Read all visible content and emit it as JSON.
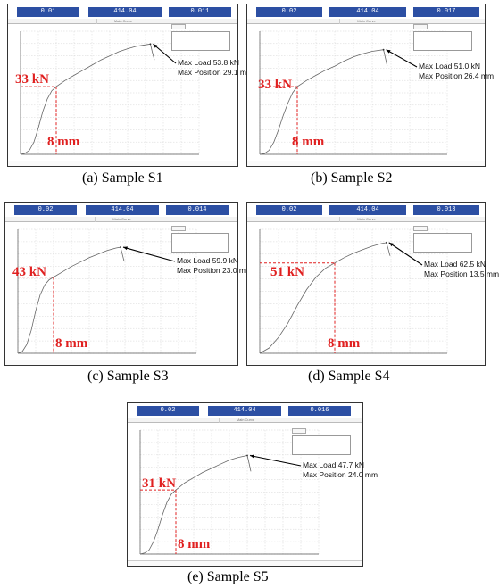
{
  "software": {
    "stack_title": "Main Curve",
    "readouts": [
      "0.01",
      "414.04",
      "0.011"
    ]
  },
  "captions": [
    "(a)  Sample S1",
    "(b) Sample S2",
    "(c)  Sample S3",
    "(d) Sample S4",
    "(e)  Sample S5"
  ],
  "chart_data": [
    {
      "type": "line",
      "sample": "S1",
      "readouts": [
        "0.01",
        "414.04",
        "0.011"
      ],
      "max_load_label": "Max Load 53.8 kN",
      "max_position_label": "Max Position 29.1 mm",
      "yield_load_label": "33 kN",
      "yield_position_label": "8 mm",
      "yield_load_kN": 33,
      "yield_position_mm": 8,
      "max_load_kN": 53.8,
      "max_position_mm": 29.1,
      "ylim": [
        0,
        60
      ],
      "xlim": [
        0,
        40
      ],
      "series": [
        {
          "x": [
            0,
            1,
            2,
            3,
            4,
            5,
            6,
            7,
            8,
            10,
            12,
            14,
            16,
            18,
            20,
            22,
            24,
            26,
            28,
            29.1,
            29.5,
            30.0
          ],
          "y": [
            0,
            0.5,
            2,
            6,
            13,
            21,
            27,
            31,
            33,
            36,
            38.5,
            41,
            43.5,
            46,
            48,
            50,
            51.5,
            52.7,
            53.4,
            53.8,
            50,
            46
          ]
        }
      ]
    },
    {
      "type": "line",
      "sample": "S2",
      "readouts": [
        "0.02",
        "414.04",
        "0.017"
      ],
      "max_load_label": "Max Load 51.0 kN",
      "max_position_label": "Max Position 26.4 mm",
      "yield_load_label": "33 kN",
      "yield_position_label": "8 mm",
      "yield_load_kN": 33,
      "yield_position_mm": 8,
      "max_load_kN": 51.0,
      "max_position_mm": 26.4,
      "ylim": [
        0,
        60
      ],
      "xlim": [
        0,
        40
      ],
      "series": [
        {
          "x": [
            0,
            1,
            2,
            3,
            4,
            5,
            6,
            7,
            8,
            10,
            12,
            14,
            16,
            18,
            20,
            22,
            24,
            26.4,
            26.8,
            27.2
          ],
          "y": [
            0,
            0.4,
            2,
            6,
            12,
            19,
            25,
            30,
            33,
            36,
            38.5,
            41,
            43,
            45.5,
            47.5,
            49,
            50.2,
            51.0,
            47,
            43
          ]
        }
      ]
    },
    {
      "type": "line",
      "sample": "S3",
      "readouts": [
        "0.02",
        "414.04",
        "0.014"
      ],
      "max_load_label": "Max Load 59.9 kN",
      "max_position_label": "Max Position 23.0 mm",
      "yield_load_label": "43 kN",
      "yield_position_label": "8 mm",
      "yield_load_kN": 43,
      "yield_position_mm": 8,
      "max_load_kN": 59.9,
      "max_position_mm": 23.0,
      "ylim": [
        0,
        70
      ],
      "xlim": [
        0,
        40
      ],
      "series": [
        {
          "x": [
            0,
            1,
            2,
            3,
            4,
            5,
            6,
            7,
            8,
            10,
            12,
            14,
            16,
            18,
            20,
            22,
            23.0,
            23.4,
            23.8
          ],
          "y": [
            0,
            1,
            5,
            13,
            24,
            33,
            38.5,
            41.5,
            43,
            46,
            49,
            51.5,
            54,
            56,
            58,
            59.4,
            59.9,
            56,
            52
          ]
        }
      ]
    },
    {
      "type": "line",
      "sample": "S4",
      "readouts": [
        "0.02",
        "414.04",
        "0.013"
      ],
      "max_load_label": "Max Load 62.5 kN",
      "max_position_label": "Max Position 13.5 mm",
      "yield_load_label": "51 kN",
      "yield_position_label": "8 mm",
      "yield_load_kN": 51,
      "yield_position_mm": 8,
      "max_load_kN": 62.5,
      "max_position_mm": 13.5,
      "ylim": [
        0,
        70
      ],
      "xlim": [
        0,
        20
      ],
      "series": [
        {
          "x": [
            0,
            1,
            2,
            3,
            4,
            5,
            6,
            7,
            8,
            9,
            10,
            11,
            12,
            13,
            13.5,
            13.7,
            13.9
          ],
          "y": [
            0,
            3,
            9,
            17,
            27,
            36,
            43,
            48,
            51,
            54,
            56.5,
            58.5,
            60.5,
            62,
            62.5,
            59,
            55
          ]
        }
      ]
    },
    {
      "type": "line",
      "sample": "S5",
      "readouts": [
        "0.02",
        "414.04",
        "0.016"
      ],
      "max_load_label": "Max Load 47.7 kN",
      "max_position_label": "Max Position 24.0 mm",
      "yield_load_label": "31 kN",
      "yield_position_label": "8 mm",
      "yield_load_kN": 31,
      "yield_position_mm": 8,
      "max_load_kN": 47.7,
      "max_position_mm": 24.0,
      "ylim": [
        0,
        60
      ],
      "xlim": [
        0,
        40
      ],
      "series": [
        {
          "x": [
            0,
            1,
            2,
            3,
            4,
            5,
            6,
            7,
            8,
            10,
            12,
            14,
            16,
            18,
            20,
            22,
            24.0,
            24.4,
            24.8
          ],
          "y": [
            0,
            0.5,
            2,
            6,
            12,
            19,
            25,
            29,
            31,
            34.5,
            37,
            39.5,
            41.5,
            43.5,
            45.5,
            46.8,
            47.7,
            44,
            40
          ]
        }
      ]
    }
  ]
}
